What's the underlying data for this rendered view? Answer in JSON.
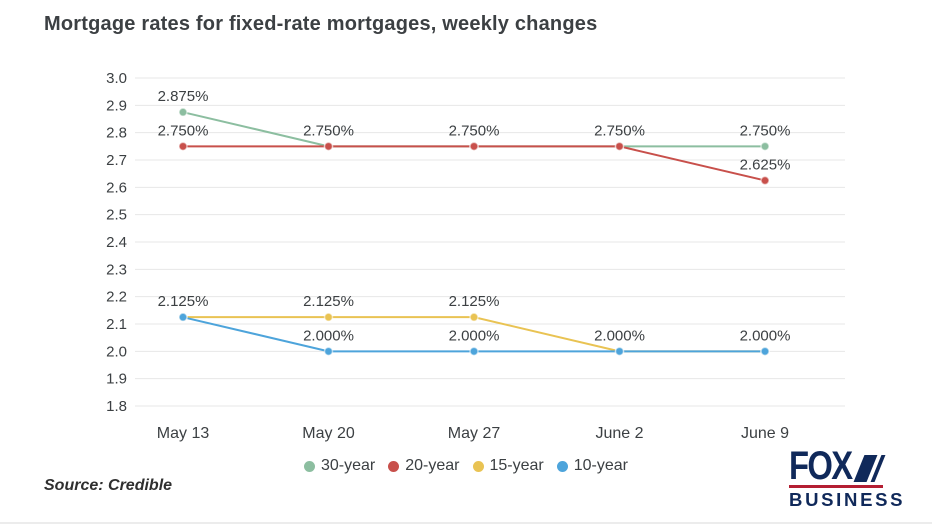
{
  "chart_data": {
    "type": "line",
    "title": "Mortgage rates for fixed-rate mortgages, weekly changes",
    "categories": [
      "May 13",
      "May 20",
      "May 27",
      "June 2",
      "June 9"
    ],
    "series": [
      {
        "name": "30-year",
        "color": "#8cbea0",
        "values": [
          2.875,
          2.75,
          2.75,
          2.75,
          2.75
        ]
      },
      {
        "name": "20-year",
        "color": "#c8504b",
        "values": [
          2.75,
          2.75,
          2.75,
          2.75,
          2.625
        ]
      },
      {
        "name": "15-year",
        "color": "#e9c353",
        "values": [
          2.125,
          2.125,
          2.125,
          2.0,
          2.0
        ]
      },
      {
        "name": "10-year",
        "color": "#4da4db",
        "values": [
          2.125,
          2.0,
          2.0,
          2.0,
          2.0
        ]
      }
    ],
    "ylim": [
      1.8,
      3.0
    ],
    "ytick_step": 0.1,
    "ytick_labels": [
      "3.0",
      "2.9",
      "2.8",
      "2.7",
      "2.6",
      "2.5",
      "2.4",
      "2.3",
      "2.2",
      "2.1",
      "2.0",
      "1.9",
      "1.8"
    ],
    "grid": true,
    "legend_position": "bottom",
    "point_label_format": "3-decimal percent, shared labels deduplicated per date"
  },
  "source_label": "Source: Credible",
  "logo": {
    "brand": "FOX",
    "sub": "BUSINESS",
    "navy": "#10295a",
    "red": "#b41e32"
  },
  "colors": {
    "text": "#3c4043",
    "grid": "#e7e7e7",
    "background": "#ffffff"
  }
}
